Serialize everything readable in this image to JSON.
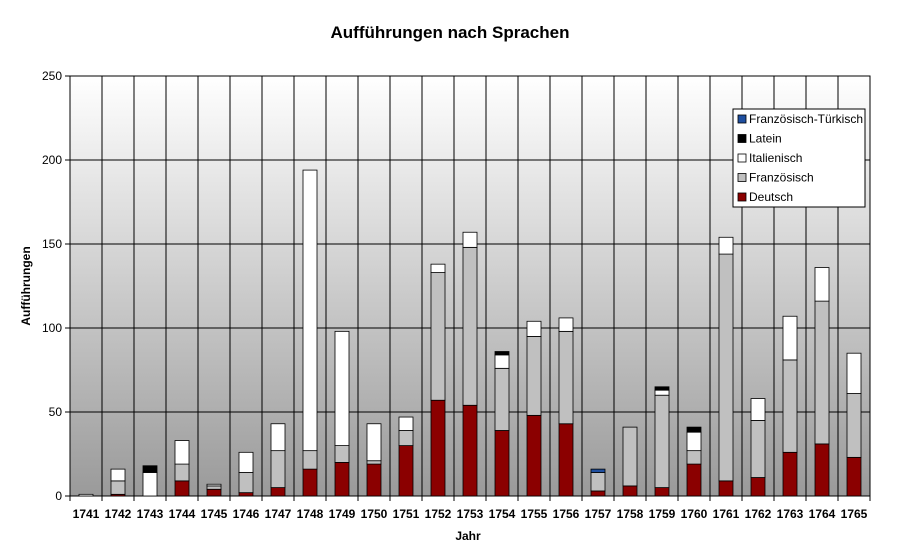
{
  "chart_data": {
    "type": "bar",
    "stacked": true,
    "title": "Aufführungen nach Sprachen",
    "xlabel": "Jahr",
    "ylabel": "Aufführungen",
    "ylim": [
      0,
      250
    ],
    "yticks": [
      0,
      50,
      100,
      150,
      200,
      250
    ],
    "grid": true,
    "legend_position": "top-right",
    "categories": [
      "1741",
      "1742",
      "1743",
      "1744",
      "1745",
      "1746",
      "1747",
      "1748",
      "1749",
      "1750",
      "1751",
      "1752",
      "1753",
      "1754",
      "1755",
      "1756",
      "1757",
      "1758",
      "1759",
      "1760",
      "1761",
      "1762",
      "1763",
      "1764",
      "1765"
    ],
    "series": [
      {
        "name": "Deutsch",
        "color": "#8b0000",
        "values": [
          0,
          1,
          0,
          9,
          4,
          2,
          5,
          16,
          20,
          19,
          30,
          57,
          54,
          39,
          48,
          43,
          3,
          6,
          5,
          19,
          9,
          11,
          26,
          31,
          23
        ]
      },
      {
        "name": "Französisch",
        "color": "#c0c0c0",
        "values": [
          0,
          8,
          0,
          10,
          2,
          12,
          22,
          11,
          10,
          2,
          9,
          76,
          94,
          37,
          47,
          55,
          11,
          35,
          55,
          8,
          135,
          34,
          55,
          85,
          38
        ]
      },
      {
        "name": "Italienisch",
        "color": "#ffffff",
        "values": [
          1,
          7,
          14,
          14,
          1,
          12,
          16,
          167,
          68,
          22,
          8,
          5,
          9,
          8,
          9,
          8,
          0,
          0,
          3,
          11,
          10,
          13,
          26,
          20,
          24
        ]
      },
      {
        "name": "Latein",
        "color": "#000000",
        "values": [
          0,
          0,
          4,
          0,
          0,
          0,
          0,
          0,
          0,
          0,
          0,
          0,
          0,
          2,
          0,
          0,
          0,
          0,
          2,
          3,
          0,
          0,
          0,
          0,
          0
        ]
      },
      {
        "name": "Französisch-Türkisch",
        "color": "#1f4fa0",
        "values": [
          0,
          0,
          0,
          0,
          0,
          0,
          0,
          0,
          0,
          0,
          0,
          0,
          0,
          0,
          0,
          0,
          2,
          0,
          0,
          0,
          0,
          0,
          0,
          0,
          0
        ]
      }
    ]
  }
}
